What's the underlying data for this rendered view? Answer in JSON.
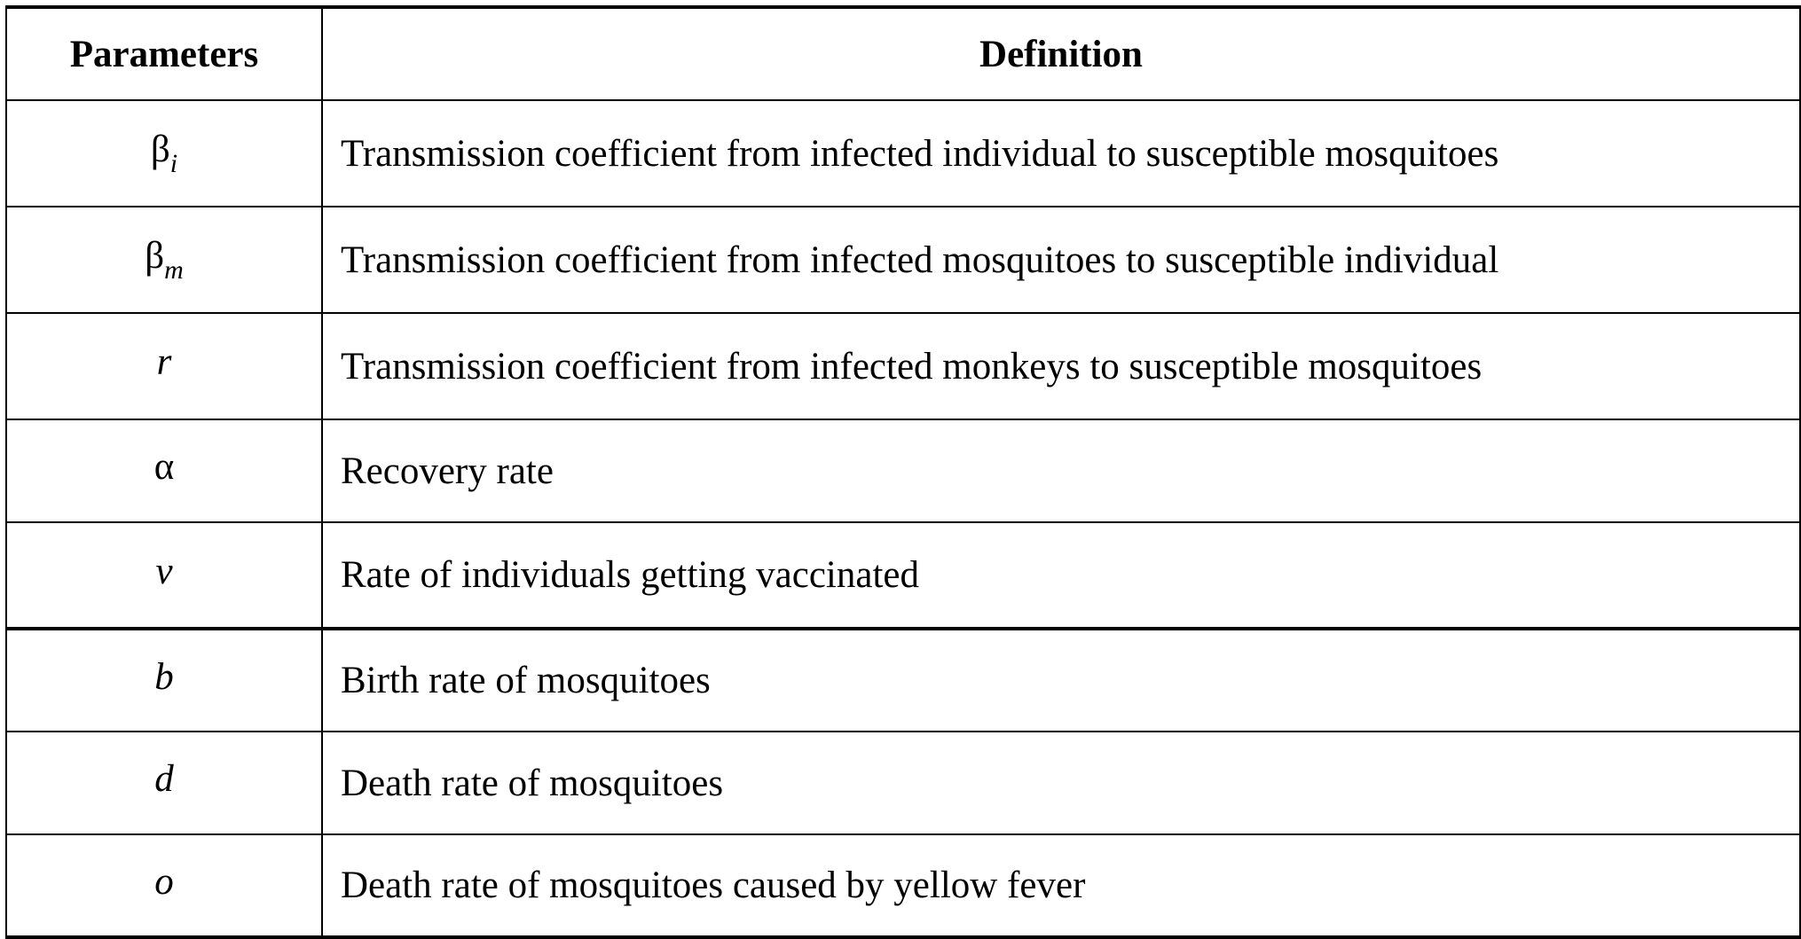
{
  "table": {
    "headers": [
      "Parameters",
      "Definition"
    ],
    "rows": [
      {
        "symbol": "β",
        "subscript": "i",
        "italic": false,
        "definition": "Transmission coefficient from infected individual to susceptible mosquitoes"
      },
      {
        "symbol": "β",
        "subscript": "m",
        "italic": false,
        "definition": "Transmission coefficient from infected mosquitoes to susceptible individual"
      },
      {
        "symbol": "r",
        "subscript": "",
        "italic": true,
        "definition": "Transmission coefficient from infected monkeys to susceptible mosquitoes"
      },
      {
        "symbol": "α",
        "subscript": "",
        "italic": false,
        "definition": "Recovery rate"
      },
      {
        "symbol": "v",
        "subscript": "",
        "italic": true,
        "definition": "Rate of individuals getting vaccinated"
      },
      {
        "symbol": "b",
        "subscript": "",
        "italic": true,
        "definition": "Birth rate of mosquitoes"
      },
      {
        "symbol": "d",
        "subscript": "",
        "italic": true,
        "definition": "Death rate of mosquitoes"
      },
      {
        "symbol": "o",
        "subscript": "",
        "italic": true,
        "definition": "Death rate of mosquitoes caused by yellow fever"
      }
    ]
  }
}
